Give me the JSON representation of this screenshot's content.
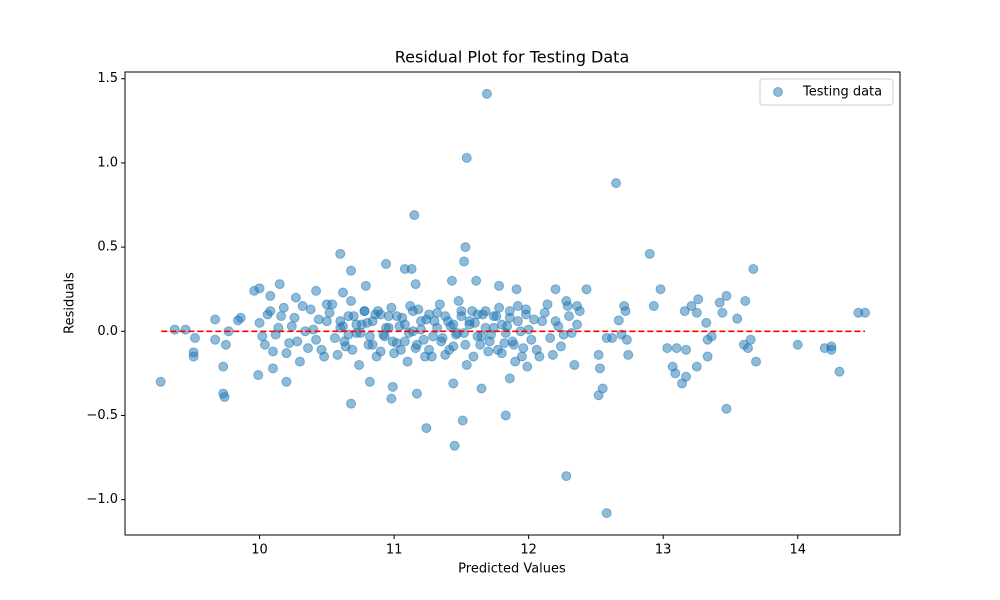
{
  "chart_data": {
    "type": "scatter",
    "title": "Residual Plot for Testing Data",
    "x_label": "Predicted Values",
    "y_label": "Residuals",
    "series": [
      {
        "name": "Testing data",
        "color": "#1f77b4",
        "opacity": 0.5,
        "x": [
          9.265,
          9.37,
          9.45,
          9.51,
          9.51,
          9.52,
          9.67,
          9.67,
          9.73,
          9.73,
          9.74,
          9.75,
          9.77,
          9.84,
          9.86,
          11.69,
          11.54,
          12.65,
          11.15,
          12.9,
          13.67,
          12.28,
          12.58,
          11.45,
          11.24,
          11.51,
          11.83,
          10.68,
          13.47,
          10.6,
          10.68,
          11.53,
          11.52,
          10.94,
          11.08,
          11.13,
          12.98,
          12.93,
          13.03,
          13.07,
          13.09,
          13.1,
          13.17,
          13.14,
          13.17,
          13.16,
          13.21,
          13.26,
          13.25,
          13.25,
          13.32,
          13.33,
          13.33,
          13.36,
          13.42,
          13.47,
          13.44,
          13.55,
          13.61,
          13.6,
          13.63,
          13.65,
          13.69,
          14.0,
          14.2,
          14.25,
          14.25,
          14.31,
          14.45,
          14.5,
          12.52,
          12.55,
          12.53,
          12.52,
          12.43,
          12.69,
          12.71,
          12.72,
          12.73,
          12.74,
          12.67,
          12.62,
          12.58,
          12.36,
          12.29,
          12.2,
          11.99,
          11.86,
          11.65,
          11.44,
          10.98,
          10.99,
          10.82,
          11.17,
          9.99,
          10.2,
          10.1,
          9.96,
          10.0,
          10.15,
          10.08,
          10.27,
          10.42,
          10.5,
          11.61,
          11.78,
          11.91,
          11.43,
          11.16,
          10.79,
          10.62,
          10.0,
          10.04,
          10.08,
          10.12,
          10.16,
          10.2,
          10.24,
          10.28,
          10.32,
          10.36,
          10.4,
          10.44,
          10.48,
          10.52,
          10.56,
          10.6,
          10.64,
          10.68,
          10.72,
          10.76,
          10.8,
          10.84,
          10.88,
          10.92,
          10.96,
          11.0,
          11.04,
          11.08,
          11.12,
          11.16,
          11.2,
          11.24,
          11.28,
          11.32,
          11.36,
          11.4,
          11.44,
          11.48,
          11.52,
          11.56,
          11.6,
          11.64,
          11.68,
          11.72,
          11.76,
          11.8,
          11.84,
          11.88,
          11.92,
          11.96,
          12.0,
          12.04,
          12.08,
          12.12,
          12.16,
          12.2,
          12.24,
          12.28,
          12.32,
          12.36,
          10.02,
          10.06,
          10.1,
          10.14,
          10.18,
          10.22,
          10.26,
          10.3,
          10.34,
          10.38,
          10.42,
          10.46,
          10.5,
          10.54,
          10.58,
          10.62,
          10.66,
          10.7,
          10.74,
          10.78,
          10.82,
          10.86,
          10.9,
          10.94,
          10.98,
          11.02,
          11.06,
          11.1,
          11.14,
          11.18,
          11.22,
          11.26,
          11.3,
          11.34,
          11.38,
          11.42,
          11.46,
          11.5,
          11.54,
          11.58,
          11.62,
          11.66,
          11.7,
          11.74,
          11.78,
          11.82,
          11.86,
          11.9,
          11.94,
          11.98,
          12.02,
          12.06,
          12.1,
          12.14,
          12.18,
          12.22,
          12.26,
          12.3,
          12.34,
          12.38,
          10.6,
          10.63,
          10.66,
          10.69,
          10.72,
          10.75,
          10.78,
          10.81,
          10.84,
          10.87,
          10.9,
          10.93,
          10.96,
          10.99,
          11.02,
          11.05,
          11.08,
          11.11,
          11.14,
          11.17,
          11.2,
          11.23,
          11.26,
          11.29,
          11.32,
          11.35,
          11.38,
          11.41,
          11.44,
          11.47,
          11.5,
          11.53,
          11.56,
          11.59,
          11.62,
          11.65,
          11.68,
          11.71,
          11.74,
          11.77,
          11.8,
          11.83,
          11.86,
          11.89,
          11.92,
          11.95,
          11.98
        ],
        "y": [
          -0.3,
          0.01,
          0.01,
          -0.125,
          -0.15,
          -0.04,
          0.07,
          -0.05,
          -0.21,
          -0.37,
          -0.39,
          -0.08,
          0.0,
          0.065,
          0.08,
          1.41,
          1.03,
          0.88,
          0.69,
          0.46,
          0.37,
          -0.86,
          -1.08,
          -0.68,
          -0.575,
          -0.53,
          -0.5,
          -0.43,
          -0.46,
          0.46,
          0.36,
          0.5,
          0.415,
          0.4,
          0.37,
          0.37,
          0.25,
          0.15,
          -0.1,
          -0.21,
          -0.25,
          -0.1,
          -0.11,
          -0.31,
          -0.27,
          0.12,
          0.15,
          0.19,
          0.11,
          -0.21,
          0.05,
          -0.15,
          -0.05,
          -0.03,
          0.17,
          0.21,
          0.11,
          0.075,
          0.18,
          -0.08,
          -0.1,
          -0.05,
          -0.18,
          -0.08,
          -0.1,
          -0.09,
          -0.11,
          -0.24,
          0.11,
          0.11,
          -0.38,
          -0.34,
          -0.22,
          -0.14,
          0.25,
          -0.02,
          0.15,
          0.12,
          -0.05,
          -0.14,
          0.065,
          -0.04,
          -0.04,
          0.15,
          0.15,
          0.25,
          -0.21,
          -0.28,
          -0.34,
          -0.31,
          -0.4,
          -0.33,
          -0.3,
          -0.37,
          -0.26,
          -0.3,
          -0.22,
          0.24,
          0.255,
          0.28,
          0.21,
          0.2,
          0.24,
          0.16,
          0.3,
          0.27,
          0.25,
          0.3,
          0.28,
          0.27,
          0.23,
          0.05,
          -0.08,
          0.12,
          -0.02,
          0.09,
          -0.13,
          0.03,
          -0.06,
          0.15,
          -0.1,
          0.01,
          0.07,
          -0.15,
          0.11,
          -0.04,
          0.06,
          -0.09,
          0.18,
          -0.01,
          0.04,
          0.05,
          -0.08,
          0.12,
          -0.02,
          0.09,
          -0.13,
          0.03,
          -0.06,
          0.15,
          -0.1,
          0.01,
          0.07,
          -0.15,
          0.11,
          -0.04,
          0.06,
          -0.09,
          0.18,
          -0.01,
          0.04,
          0.05,
          -0.08,
          0.12,
          -0.02,
          0.09,
          -0.13,
          0.03,
          -0.06,
          0.15,
          -0.1,
          0.01,
          0.07,
          -0.15,
          0.11,
          -0.04,
          0.06,
          -0.09,
          0.18,
          -0.01,
          0.04,
          -0.03,
          0.1,
          -0.12,
          0.02,
          0.14,
          -0.07,
          0.08,
          -0.18,
          0,
          0.13,
          -0.05,
          -0.11,
          0.06,
          0.16,
          -0.14,
          0.03,
          -0.02,
          0.09,
          -0.2,
          0.12,
          -0.03,
          0.1,
          -0.12,
          0.02,
          0.14,
          -0.07,
          0.08,
          -0.18,
          0,
          0.13,
          -0.05,
          -0.11,
          0.06,
          0.16,
          -0.14,
          0.03,
          -0.02,
          0.09,
          -0.2,
          0.12,
          -0.03,
          0.1,
          -0.12,
          0.02,
          0.14,
          -0.07,
          0.08,
          -0.18,
          0,
          0.13,
          -0.05,
          -0.11,
          0.06,
          0.16,
          -0.14,
          0.03,
          -0.02,
          0.09,
          -0.2,
          0.12,
          0.02,
          -0.06,
          0.09,
          -0.11,
          0.04,
          -0.01,
          0.12,
          -0.08,
          0.06,
          -0.15,
          0.1,
          -0.03,
          0.02,
          -0.06,
          0.09,
          -0.11,
          0.04,
          -0.01,
          0.12,
          -0.08,
          0.06,
          -0.15,
          0.1,
          -0.03,
          0.02,
          -0.06,
          0.09,
          -0.11,
          0.04,
          -0.01,
          0.12,
          -0.08,
          0.06,
          -0.15,
          0.1,
          -0.03,
          0.02,
          -0.06,
          0.09,
          -0.11,
          0.04,
          -0.01,
          0.12,
          -0.08,
          0.06,
          -0.15,
          0.1
        ]
      }
    ],
    "reference_line": {
      "y": 0,
      "x": [
        9.27,
        14.5
      ],
      "color": "#ff0000",
      "style": "dashed"
    },
    "xlim": [
      9.0,
      14.76
    ],
    "ylim": [
      -1.21,
      1.54
    ],
    "xticks": [
      10,
      11,
      12,
      13,
      14
    ],
    "yticks": [
      {
        "value": -1.0,
        "label": "−1.0"
      },
      {
        "value": -0.5,
        "label": "−0.5"
      },
      {
        "value": 0.0,
        "label": "0.0"
      },
      {
        "value": 0.5,
        "label": "0.5"
      },
      {
        "value": 1.0,
        "label": "1.0"
      },
      {
        "value": 1.5,
        "label": "1.5"
      }
    ],
    "legend": "upper right"
  }
}
